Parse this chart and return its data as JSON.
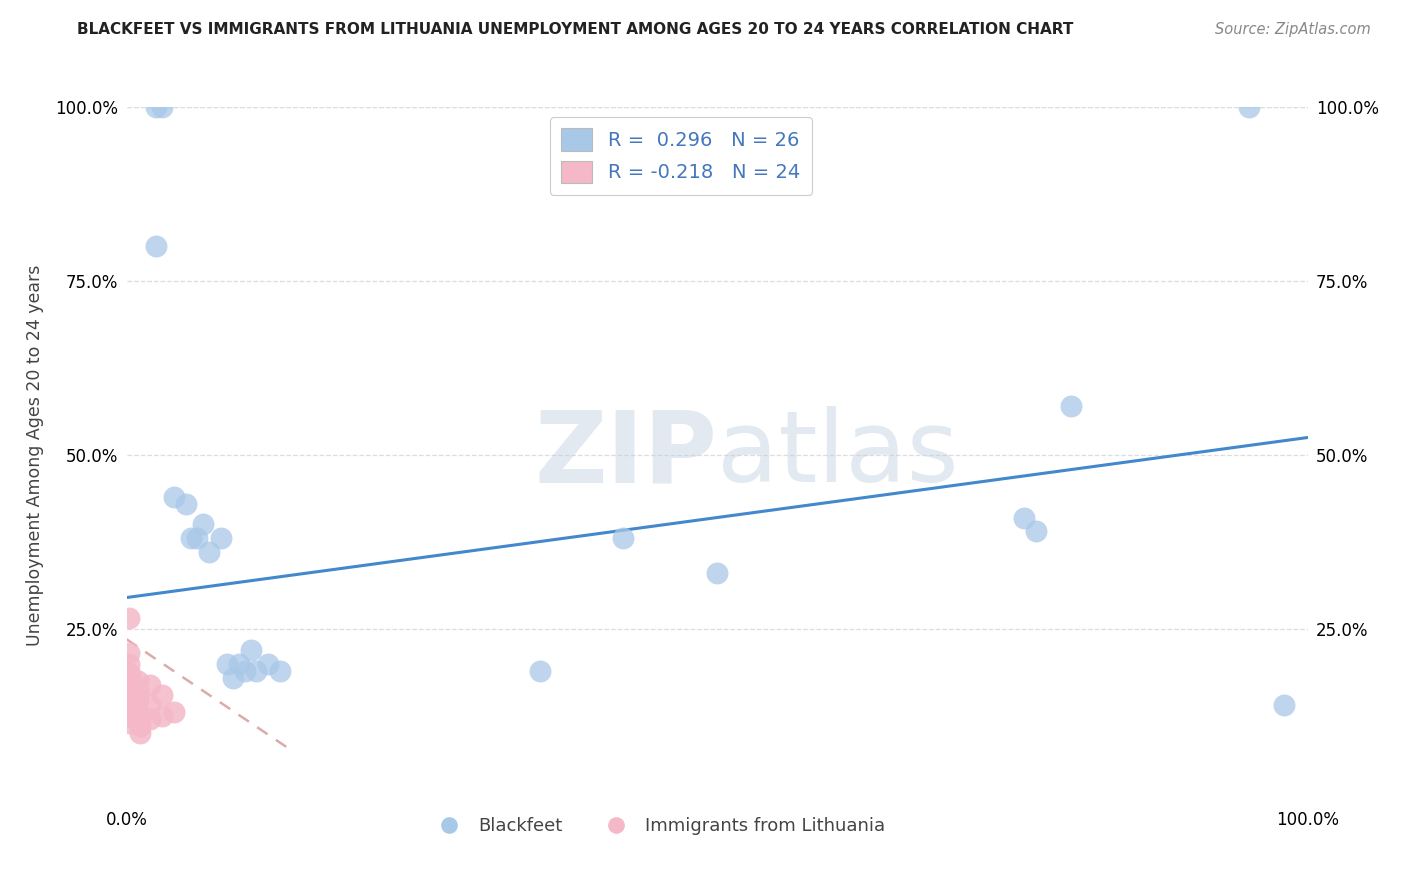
{
  "title": "BLACKFEET VS IMMIGRANTS FROM LITHUANIA UNEMPLOYMENT AMONG AGES 20 TO 24 YEARS CORRELATION CHART",
  "source": "Source: ZipAtlas.com",
  "ylabel": "Unemployment Among Ages 20 to 24 years",
  "watermark_zip": "ZIP",
  "watermark_atlas": "atlas",
  "xlim": [
    0,
    1.0
  ],
  "ylim": [
    0,
    1.0
  ],
  "xtick_positions": [
    0.0,
    1.0
  ],
  "xtick_labels": [
    "0.0%",
    "100.0%"
  ],
  "ytick_positions": [
    0.25,
    0.5,
    0.75,
    1.0
  ],
  "ytick_labels": [
    "25.0%",
    "50.0%",
    "75.0%",
    "100.0%"
  ],
  "legend_r1": "R =  0.296",
  "legend_n1": "N = 26",
  "legend_r2": "R = -0.218",
  "legend_n2": "N = 24",
  "blue_color": "#A8C8E8",
  "pink_color": "#F4B8C8",
  "blue_line_color": "#4488CC",
  "pink_line_color": "#DDAAAA",
  "r_value_color": "#4477BB",
  "blackfeet_points": [
    [
      0.025,
      1.0
    ],
    [
      0.03,
      1.0
    ],
    [
      0.025,
      0.8
    ],
    [
      0.04,
      0.44
    ],
    [
      0.05,
      0.43
    ],
    [
      0.055,
      0.38
    ],
    [
      0.06,
      0.38
    ],
    [
      0.065,
      0.4
    ],
    [
      0.07,
      0.36
    ],
    [
      0.08,
      0.38
    ],
    [
      0.085,
      0.2
    ],
    [
      0.09,
      0.18
    ],
    [
      0.095,
      0.2
    ],
    [
      0.1,
      0.19
    ],
    [
      0.105,
      0.22
    ],
    [
      0.11,
      0.19
    ],
    [
      0.12,
      0.2
    ],
    [
      0.13,
      0.19
    ],
    [
      0.35,
      0.19
    ],
    [
      0.76,
      0.41
    ],
    [
      0.77,
      0.39
    ],
    [
      0.8,
      0.57
    ],
    [
      0.95,
      1.0
    ],
    [
      0.98,
      0.14
    ],
    [
      0.5,
      0.33
    ],
    [
      0.42,
      0.38
    ]
  ],
  "lithuania_points": [
    [
      0.002,
      0.265
    ],
    [
      0.002,
      0.215
    ],
    [
      0.002,
      0.2
    ],
    [
      0.003,
      0.185
    ],
    [
      0.003,
      0.175
    ],
    [
      0.003,
      0.165
    ],
    [
      0.003,
      0.155
    ],
    [
      0.003,
      0.145
    ],
    [
      0.003,
      0.135
    ],
    [
      0.003,
      0.125
    ],
    [
      0.003,
      0.115
    ],
    [
      0.01,
      0.175
    ],
    [
      0.01,
      0.16
    ],
    [
      0.01,
      0.148
    ],
    [
      0.01,
      0.13
    ],
    [
      0.011,
      0.12
    ],
    [
      0.011,
      0.11
    ],
    [
      0.011,
      0.1
    ],
    [
      0.02,
      0.17
    ],
    [
      0.02,
      0.14
    ],
    [
      0.02,
      0.12
    ],
    [
      0.03,
      0.155
    ],
    [
      0.03,
      0.125
    ],
    [
      0.04,
      0.13
    ]
  ],
  "blue_trend_x": [
    0.0,
    1.0
  ],
  "blue_trend_y": [
    0.295,
    0.525
  ],
  "pink_trend_x": [
    0.0,
    0.14
  ],
  "pink_trend_y": [
    0.235,
    0.075
  ],
  "grid_color": "#DDDDDD",
  "grid_linestyle": "--"
}
